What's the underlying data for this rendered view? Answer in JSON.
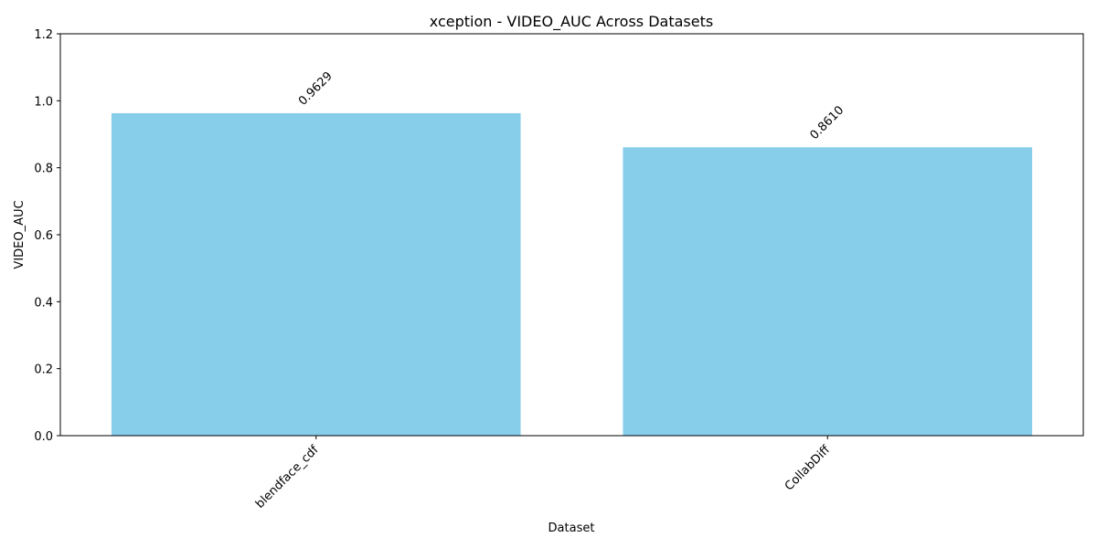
{
  "chart_data": {
    "type": "bar",
    "title": "xception - VIDEO_AUC Across Datasets",
    "xlabel": "Dataset",
    "ylabel": "VIDEO_AUC",
    "categories": [
      "blendface_cdf",
      "CollabDiff"
    ],
    "values": [
      0.9629,
      0.861
    ],
    "data_labels": [
      "0.9629",
      "0.8610"
    ],
    "ylim": [
      0,
      1.2
    ],
    "yticks": [
      0.0,
      0.2,
      0.4,
      0.6,
      0.8,
      1.0,
      1.2
    ],
    "ytick_labels": [
      "0.0",
      "0.2",
      "0.4",
      "0.6",
      "0.8",
      "1.0",
      "1.2"
    ],
    "bar_color": "#87ceeb",
    "grid": false,
    "legend": "none"
  }
}
